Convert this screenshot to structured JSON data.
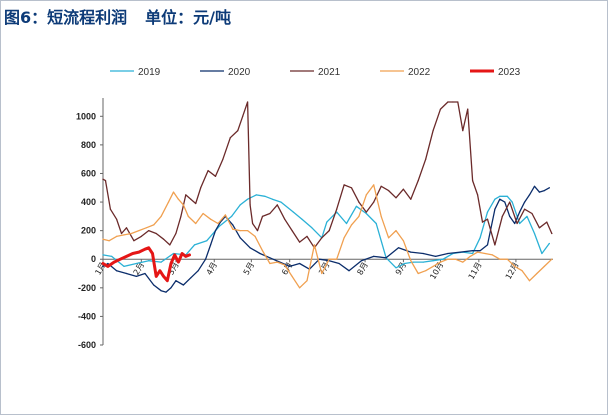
{
  "title": "图6：短流程利润",
  "unit_label": "单位：元/吨",
  "chart_data": {
    "type": "line",
    "title": "图6：短流程利润",
    "ylabel": "单位：元/吨",
    "xlabel": "",
    "ylim": [
      -600,
      1100
    ],
    "yticks": [
      -600,
      -400,
      -200,
      0,
      200,
      400,
      600,
      800,
      1000
    ],
    "x_unit": "day of year (1-365)",
    "month_ticks": [
      {
        "label": "1月",
        "day": 1
      },
      {
        "label": "2月",
        "day": 32
      },
      {
        "label": "3月",
        "day": 60
      },
      {
        "label": "4月",
        "day": 91
      },
      {
        "label": "5月",
        "day": 121
      },
      {
        "label": "6月",
        "day": 152
      },
      {
        "label": "7月",
        "day": 182
      },
      {
        "label": "8月",
        "day": 213
      },
      {
        "label": "9月",
        "day": 244
      },
      {
        "label": "10月",
        "day": 274
      },
      {
        "label": "11月",
        "day": 305
      },
      {
        "label": "12月",
        "day": 335
      }
    ],
    "grid": false,
    "legend_position": "top",
    "series": [
      {
        "name": "2019",
        "color": "#2bb1d6",
        "width": 1.3,
        "x": [
          1,
          8,
          18,
          28,
          38,
          48,
          58,
          68,
          75,
          85,
          95,
          105,
          112,
          118,
          125,
          132,
          138,
          145,
          155,
          162,
          170,
          178,
          182,
          190,
          198,
          206,
          214,
          222,
          230,
          238,
          245,
          252,
          260,
          268,
          276,
          284,
          292,
          300,
          306,
          312,
          318,
          322,
          328,
          332,
          338,
          344,
          350,
          356,
          362
        ],
        "values": [
          30,
          20,
          -50,
          -30,
          -10,
          -20,
          40,
          30,
          100,
          130,
          230,
          300,
          380,
          420,
          450,
          440,
          420,
          400,
          330,
          280,
          220,
          150,
          260,
          330,
          250,
          370,
          320,
          250,
          10,
          -60,
          -30,
          -20,
          -20,
          -10,
          0,
          40,
          50,
          40,
          150,
          330,
          420,
          440,
          440,
          400,
          250,
          300,
          180,
          40,
          110
        ]
      },
      {
        "name": "2020",
        "color": "#0b2d6b",
        "width": 1.3,
        "x": [
          1,
          5,
          12,
          20,
          28,
          35,
          42,
          48,
          52,
          56,
          60,
          66,
          72,
          78,
          84,
          88,
          92,
          96,
          100,
          106,
          112,
          120,
          128,
          136,
          144,
          152,
          160,
          168,
          176,
          184,
          192,
          200,
          210,
          220,
          230,
          240,
          250,
          260,
          270,
          280,
          290,
          300,
          306,
          312,
          318,
          322,
          326,
          330,
          334,
          338,
          342,
          346,
          350,
          354,
          358,
          362
        ],
        "values": [
          -50,
          -30,
          -80,
          -100,
          -120,
          -100,
          -180,
          -220,
          -230,
          -200,
          -150,
          -180,
          -130,
          -80,
          0,
          100,
          200,
          260,
          300,
          240,
          150,
          80,
          40,
          10,
          -20,
          -50,
          -30,
          -70,
          0,
          -10,
          -30,
          -80,
          -10,
          20,
          10,
          80,
          50,
          40,
          20,
          40,
          50,
          60,
          60,
          100,
          350,
          420,
          400,
          300,
          250,
          330,
          400,
          450,
          510,
          470,
          480,
          500
        ]
      },
      {
        "name": "2021",
        "color": "#6b2a2a",
        "width": 1.3,
        "x": [
          1,
          3,
          7,
          12,
          16,
          20,
          26,
          32,
          38,
          44,
          50,
          55,
          60,
          64,
          68,
          72,
          76,
          80,
          86,
          92,
          98,
          104,
          110,
          114,
          118,
          120,
          122,
          126,
          130,
          136,
          142,
          148,
          154,
          160,
          166,
          172,
          178,
          184,
          190,
          196,
          202,
          208,
          214,
          220,
          226,
          232,
          238,
          244,
          250,
          256,
          262,
          268,
          274,
          280,
          284,
          288,
          292,
          296,
          300,
          304,
          308,
          312,
          318,
          324,
          330,
          336,
          342,
          348,
          354,
          360,
          364
        ],
        "values": [
          560,
          550,
          350,
          280,
          180,
          220,
          130,
          160,
          200,
          180,
          140,
          100,
          180,
          300,
          450,
          420,
          390,
          500,
          620,
          580,
          700,
          850,
          900,
          1000,
          1100,
          380,
          250,
          200,
          300,
          320,
          380,
          280,
          200,
          120,
          160,
          80,
          150,
          200,
          350,
          520,
          500,
          400,
          330,
          400,
          510,
          480,
          430,
          490,
          420,
          550,
          700,
          900,
          1050,
          1100,
          1100,
          1100,
          900,
          1050,
          550,
          450,
          260,
          280,
          100,
          300,
          400,
          250,
          350,
          320,
          220,
          260,
          180
        ]
      },
      {
        "name": "2022",
        "color": "#f0a050",
        "width": 1.3,
        "x": [
          1,
          6,
          12,
          18,
          24,
          30,
          36,
          42,
          48,
          54,
          58,
          62,
          66,
          70,
          76,
          82,
          88,
          94,
          100,
          106,
          112,
          118,
          124,
          130,
          136,
          142,
          148,
          154,
          160,
          166,
          172,
          178,
          184,
          190,
          196,
          202,
          208,
          214,
          220,
          226,
          232,
          238,
          244,
          250,
          256,
          262,
          268,
          274,
          280,
          286,
          292,
          298,
          304,
          310,
          316,
          322,
          328,
          334,
          340,
          346,
          352,
          358,
          364
        ],
        "values": [
          140,
          130,
          160,
          170,
          180,
          200,
          220,
          240,
          300,
          400,
          470,
          420,
          380,
          300,
          250,
          320,
          280,
          250,
          310,
          210,
          200,
          200,
          160,
          60,
          -30,
          -20,
          -40,
          -120,
          -200,
          -150,
          100,
          -100,
          0,
          0,
          150,
          240,
          300,
          450,
          520,
          300,
          150,
          200,
          130,
          -10,
          -100,
          -80,
          -50,
          -20,
          0,
          0,
          -20,
          20,
          50,
          40,
          30,
          0,
          0,
          -50,
          -80,
          -150,
          -100,
          -50,
          0
        ]
      },
      {
        "name": "2023",
        "color": "#e51616",
        "width": 3,
        "x": [
          1,
          5,
          10,
          15,
          20,
          25,
          30,
          35,
          38,
          41,
          44,
          47,
          50,
          53,
          56,
          59,
          62,
          65,
          68,
          71
        ],
        "values": [
          -30,
          -50,
          -20,
          0,
          20,
          40,
          50,
          70,
          80,
          40,
          -120,
          -80,
          -120,
          -150,
          -30,
          30,
          -20,
          40,
          20,
          30
        ]
      }
    ]
  }
}
